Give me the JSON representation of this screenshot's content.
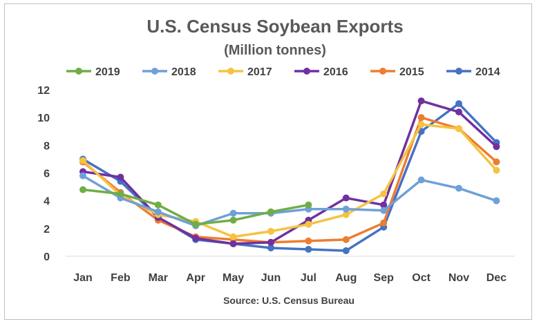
{
  "chart_data": {
    "type": "line",
    "title": "U.S. Census Soybean Exports",
    "subtitle": "(Million tonnes)",
    "source": "Source: U.S. Census Bureau",
    "categories": [
      "Jan",
      "Feb",
      "Mar",
      "Apr",
      "May",
      "Jun",
      "Jul",
      "Aug",
      "Sep",
      "Oct",
      "Nov",
      "Dec"
    ],
    "ylim": [
      0,
      12
    ],
    "yticks": [
      "0",
      "2",
      "4",
      "6",
      "8",
      "10",
      "12"
    ],
    "grid": false,
    "legend_position": "top",
    "series": [
      {
        "name": "2019",
        "color": "#70ad47",
        "values": [
          4.8,
          4.5,
          3.7,
          2.3,
          2.6,
          3.2,
          3.7,
          null,
          null,
          null,
          null,
          null
        ]
      },
      {
        "name": "2018",
        "color": "#6fa0d8",
        "values": [
          5.8,
          4.2,
          3.2,
          2.2,
          3.1,
          3.1,
          3.4,
          3.4,
          3.3,
          5.5,
          4.9,
          4.0
        ]
      },
      {
        "name": "2017",
        "color": "#f5c342",
        "values": [
          6.9,
          4.4,
          3.0,
          2.5,
          1.4,
          1.8,
          2.3,
          3.0,
          4.5,
          9.5,
          9.2,
          6.2
        ]
      },
      {
        "name": "2016",
        "color": "#7030a0",
        "values": [
          6.1,
          5.7,
          2.8,
          1.3,
          0.9,
          1.0,
          2.6,
          4.2,
          3.7,
          11.2,
          10.4,
          7.9
        ]
      },
      {
        "name": "2015",
        "color": "#ed7d31",
        "values": [
          6.8,
          4.6,
          2.6,
          1.4,
          1.2,
          1.0,
          1.1,
          1.2,
          2.4,
          10.0,
          9.2,
          6.8
        ]
      },
      {
        "name": "2014",
        "color": "#4472c4",
        "values": [
          7.0,
          5.4,
          2.8,
          1.2,
          0.9,
          0.6,
          0.5,
          0.4,
          2.1,
          9.0,
          11.0,
          8.2
        ]
      }
    ]
  }
}
